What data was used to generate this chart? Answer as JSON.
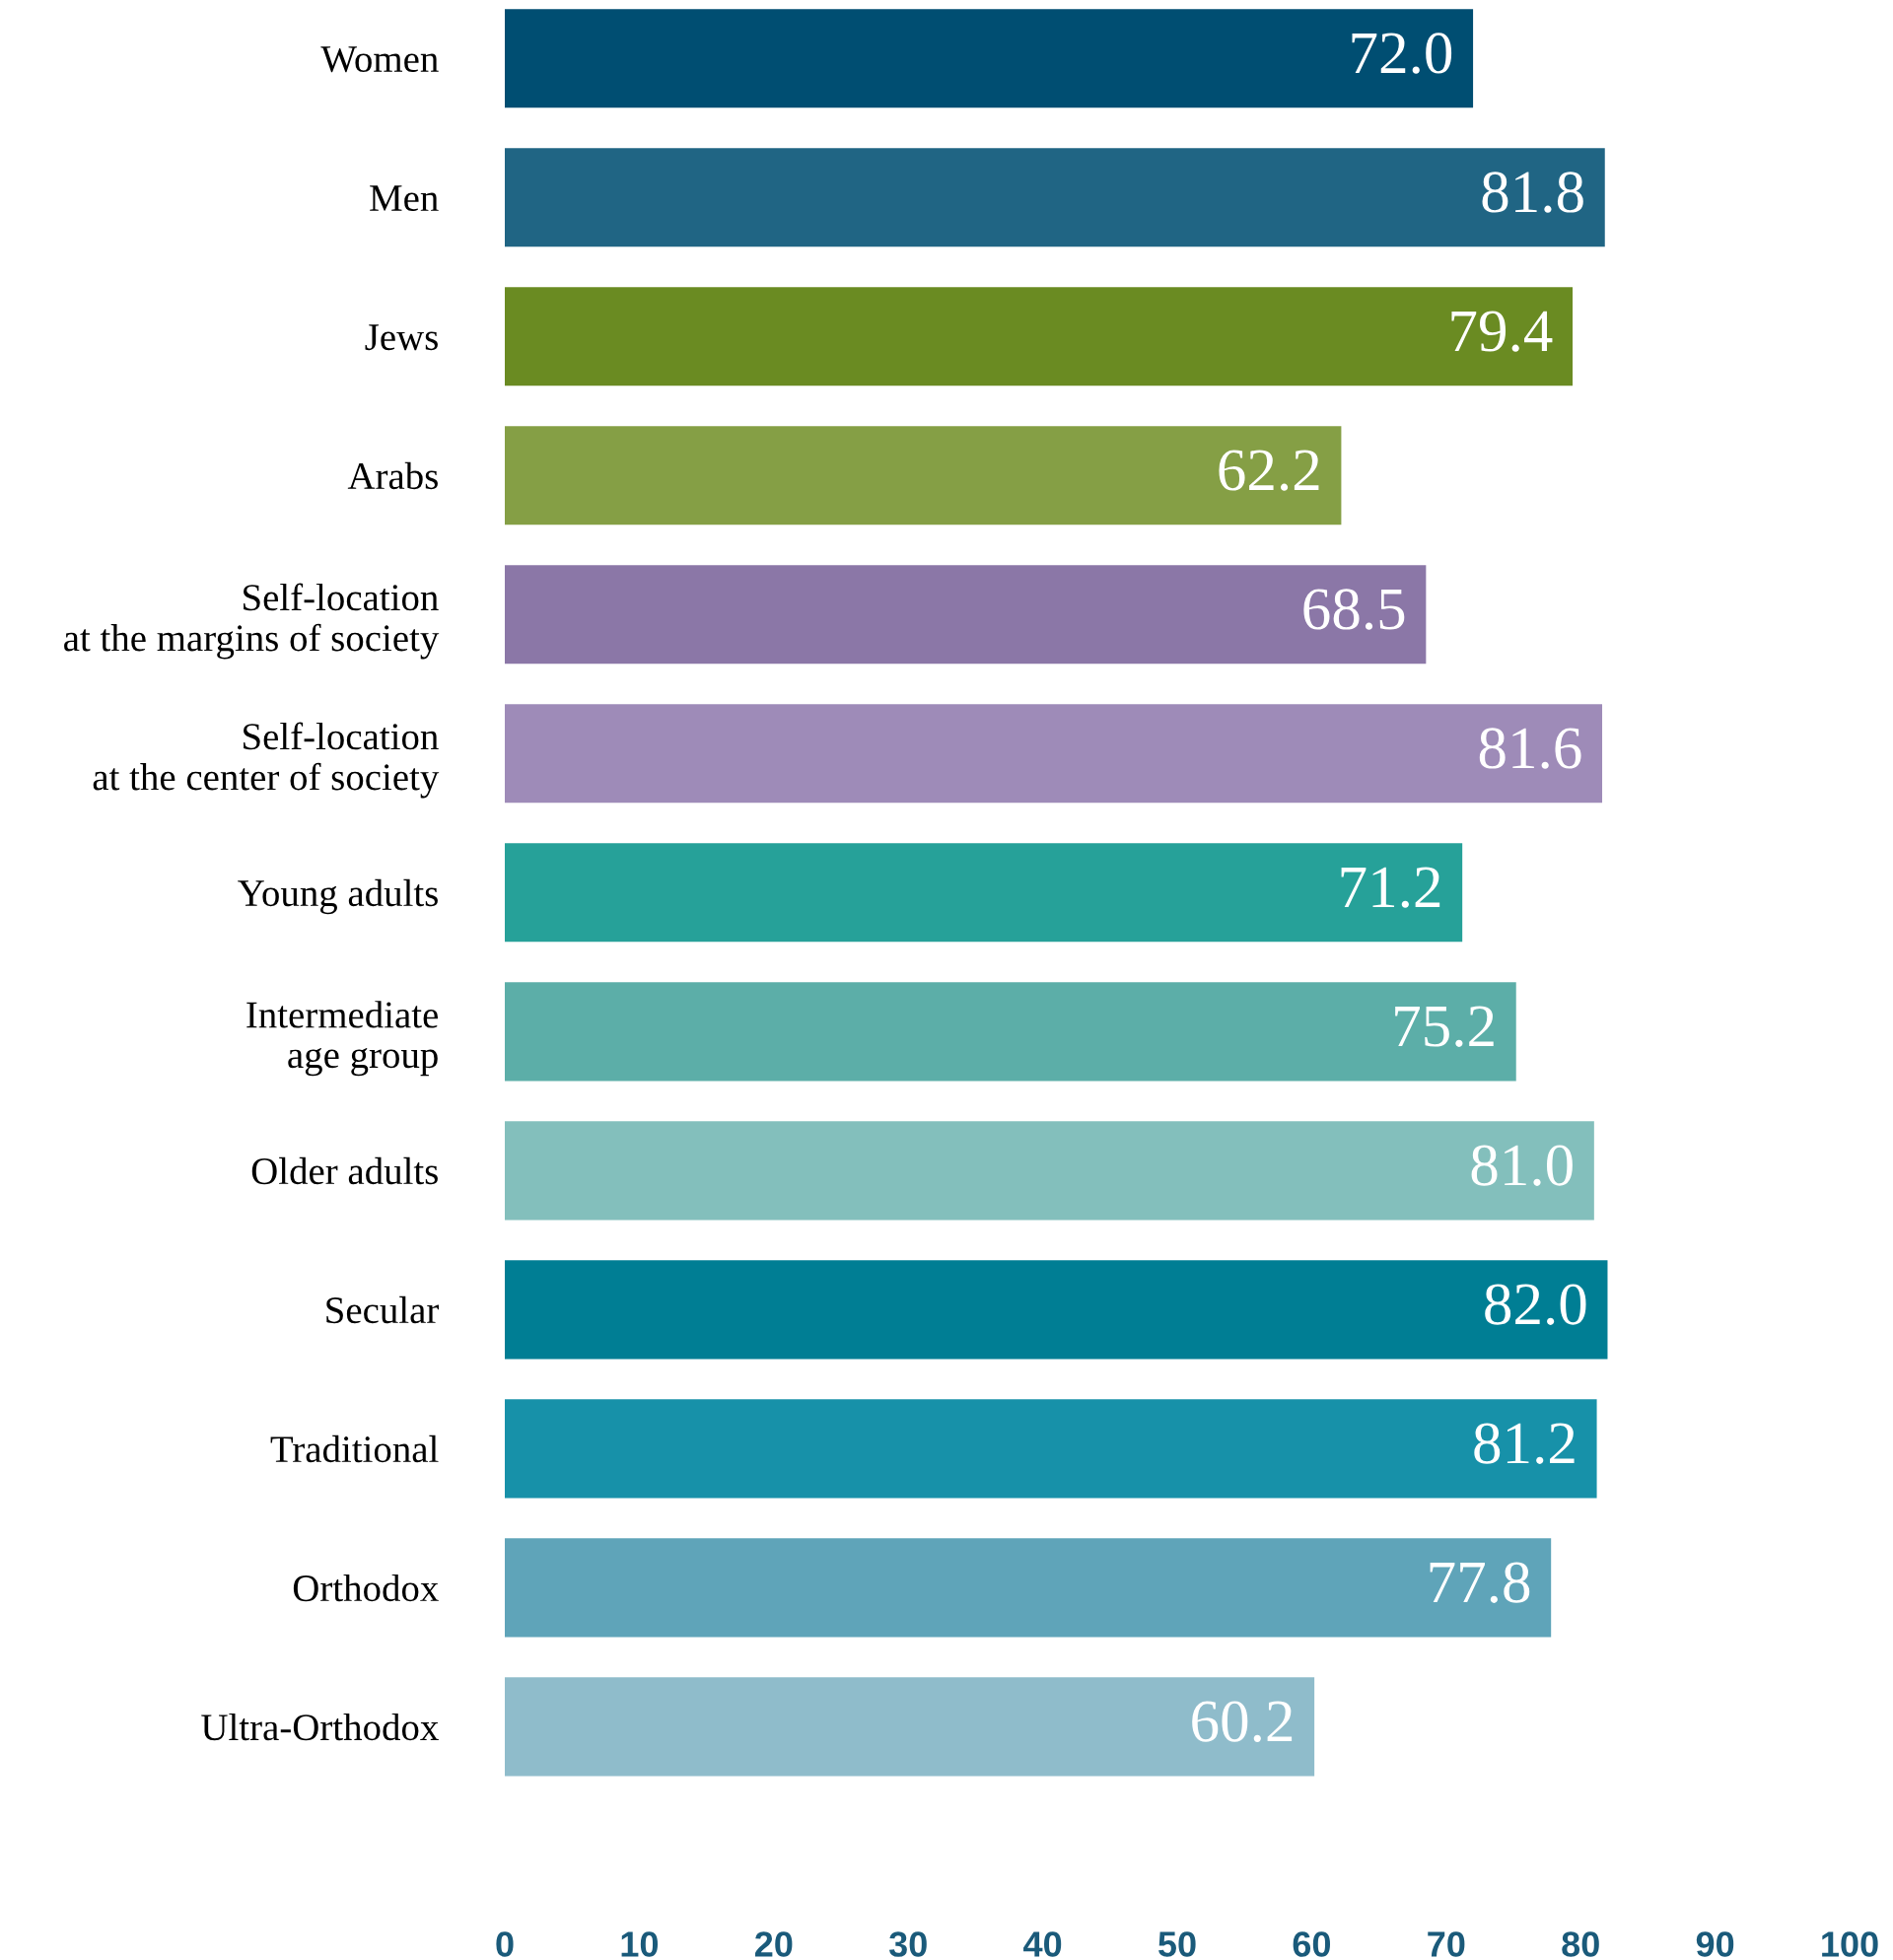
{
  "chart_data": {
    "type": "bar",
    "orientation": "horizontal",
    "categories": [
      "Women",
      "Men",
      "Jews",
      "Arabs",
      "Self-location\nat the margins of society",
      "Self-location\nat the center of society",
      "Young adults",
      "Intermediate\nage group",
      "Older adults",
      "Secular",
      "Traditional",
      "Orthodox",
      "Ultra-Orthodox"
    ],
    "values": [
      72.0,
      81.8,
      79.4,
      62.2,
      68.5,
      81.6,
      71.2,
      75.2,
      81.0,
      82.0,
      81.2,
      77.8,
      60.2
    ],
    "value_labels": [
      "72.0",
      "81.8",
      "79.4",
      "62.2",
      "68.5",
      "81.6",
      "71.2",
      "75.2",
      "81.0",
      "82.0",
      "81.2",
      "77.8",
      "60.2"
    ],
    "colors": [
      "#004e72",
      "#206584",
      "#6a8b22",
      "#859f45",
      "#8b77a7",
      "#9e8bb8",
      "#26a199",
      "#5caea8",
      "#83bfbc",
      "#007e94",
      "#1791a9",
      "#5fa4b9",
      "#8fbccb"
    ],
    "xlim": [
      0,
      100
    ],
    "xticks": [
      0,
      10,
      20,
      30,
      40,
      50,
      60,
      70,
      80,
      90,
      100
    ],
    "grid": false,
    "legend": false
  }
}
